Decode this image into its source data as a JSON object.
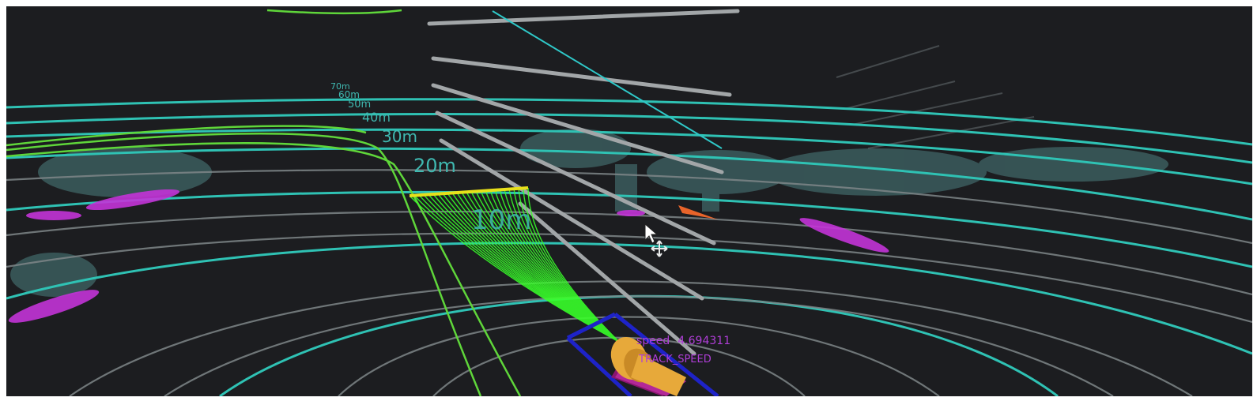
{
  "viewport": {
    "background": "#1c1d20",
    "ring_labels": [
      "70m",
      "60m",
      "50m",
      "40m",
      "30m",
      "20m",
      "10m"
    ],
    "overlay": {
      "speed_label": "speed",
      "speed_value": "4.694311",
      "mode": "TRACK_SPEED"
    },
    "colors": {
      "range_rings": "#2fc2b4",
      "grid_lines": "#7e8688",
      "path": "#5fd63a",
      "trajectory_fan": "#39ff2a",
      "fan_front": "#e8e01a",
      "vehicle": "#e7a93a",
      "vehicle_box": "#1e23c8",
      "obstacle_points": "#c434d8",
      "overlay_text": "#b03ed8"
    },
    "icons": [
      "mouse-cursor-icon",
      "move-gizmo-icon"
    ]
  }
}
